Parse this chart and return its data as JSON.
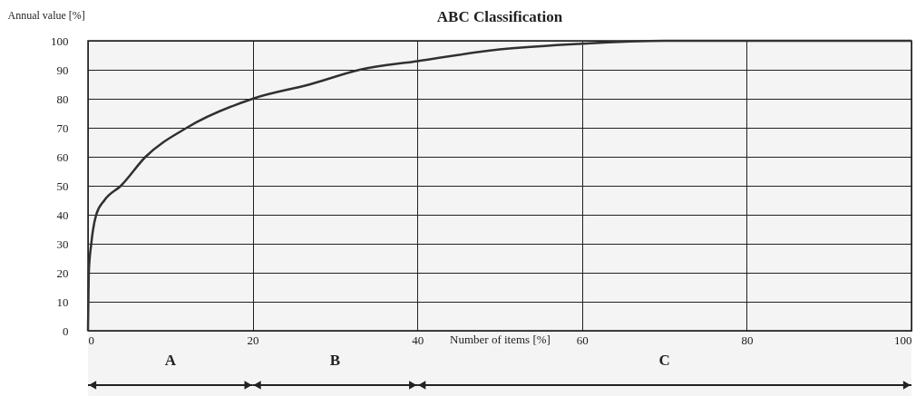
{
  "chart_data": {
    "type": "line",
    "title": "ABC Classification",
    "xlabel": "Number of items [%]",
    "ylabel": "Annual value [%]",
    "x": [
      0,
      0.1,
      0.4,
      1,
      2,
      4,
      7,
      12,
      20,
      27,
      33,
      40,
      50,
      60,
      70,
      80,
      100
    ],
    "values": [
      0,
      20,
      30,
      40,
      45,
      50,
      60,
      70,
      80,
      85,
      90,
      93,
      97,
      99,
      100,
      100,
      100
    ],
    "color": "#333333",
    "xlim": [
      0,
      100
    ],
    "ylim": [
      0,
      100
    ],
    "xticks": [
      0,
      20,
      40,
      60,
      80,
      100
    ],
    "yticks": [
      0,
      10,
      20,
      30,
      40,
      50,
      60,
      70,
      80,
      90,
      100
    ],
    "grid": true,
    "bands": [
      {
        "axis": "x",
        "from": 0,
        "to": 20,
        "label": "A"
      },
      {
        "axis": "x",
        "from": 20,
        "to": 40,
        "label": "B"
      },
      {
        "axis": "x",
        "from": 40,
        "to": 100,
        "label": "C"
      }
    ]
  }
}
